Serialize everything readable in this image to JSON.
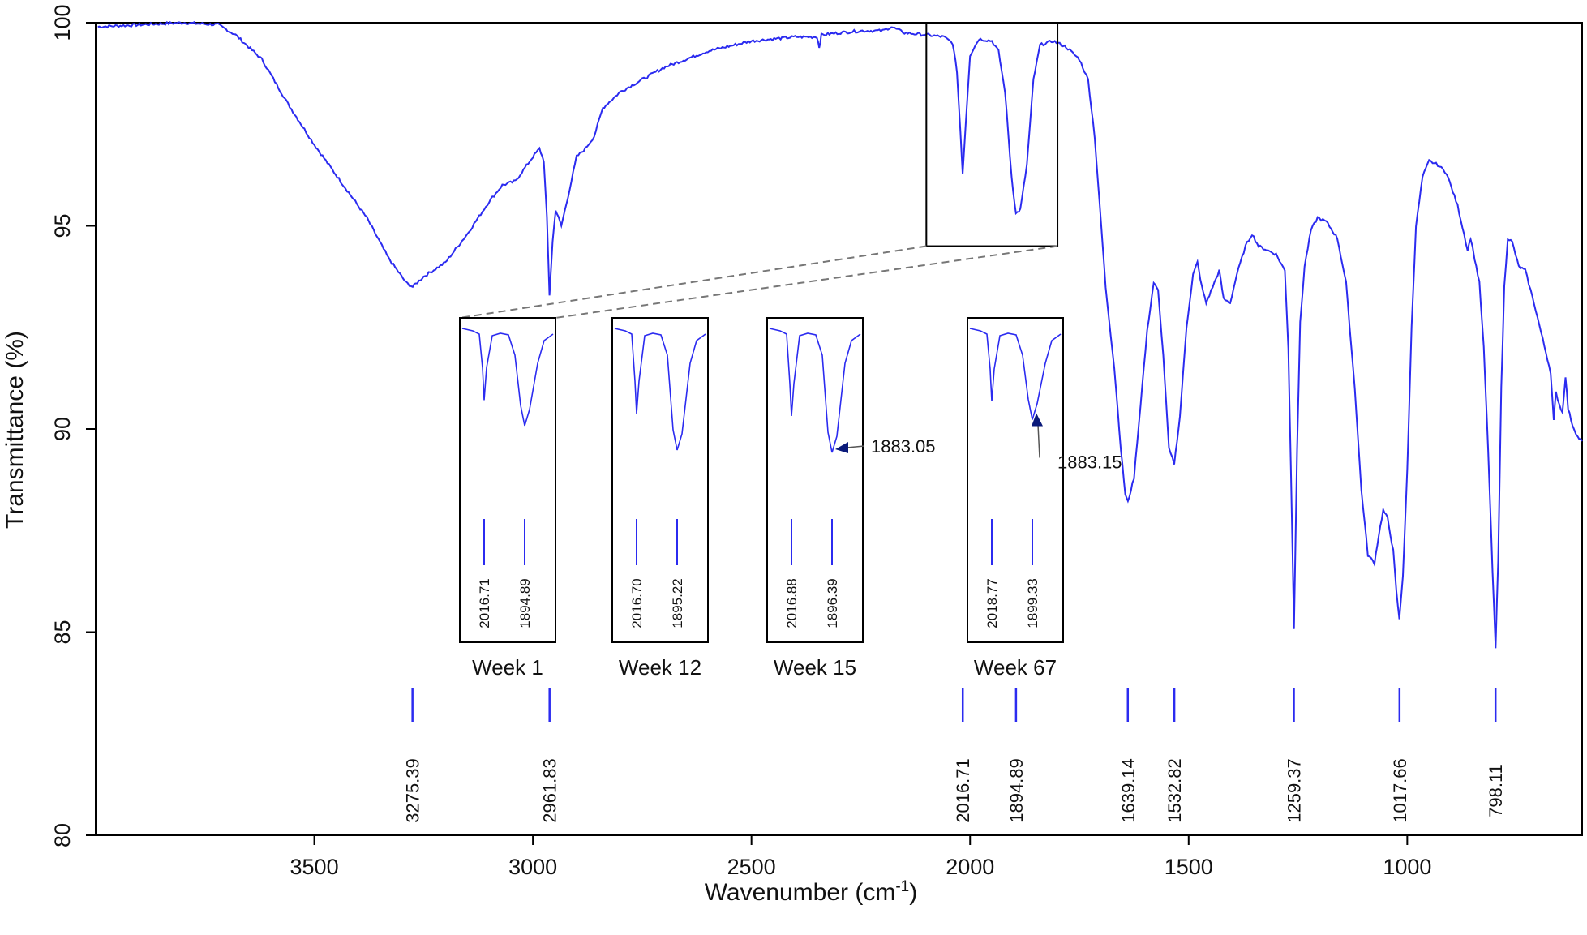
{
  "chart_data": {
    "type": "line",
    "xlabel": "Wavenumber (cm",
    "xlabel_sup": "-1",
    "xlabel_close": ")",
    "ylabel": "Transmittance (%)",
    "xlim": [
      4000,
      600
    ],
    "ylim": [
      80,
      100
    ],
    "x_reversed": true,
    "xticks": [
      "3500",
      "3000",
      "2500",
      "2000",
      "1500",
      "1000"
    ],
    "yticks": [
      "80",
      "85",
      "90",
      "95",
      "100"
    ],
    "line_color": "#2b2bf0",
    "spectrum": [
      [
        3995,
        99.9
      ],
      [
        3900,
        99.95
      ],
      [
        3800,
        100.0
      ],
      [
        3720,
        99.95
      ],
      [
        3680,
        99.7
      ],
      [
        3620,
        99.1
      ],
      [
        3560,
        98.0
      ],
      [
        3500,
        97.0
      ],
      [
        3440,
        96.1
      ],
      [
        3380,
        95.2
      ],
      [
        3330,
        94.2
      ],
      [
        3290,
        93.6
      ],
      [
        3275,
        93.5
      ],
      [
        3250,
        93.75
      ],
      [
        3200,
        94.1
      ],
      [
        3150,
        94.8
      ],
      [
        3100,
        95.6
      ],
      [
        3070,
        96.0
      ],
      [
        3040,
        96.1
      ],
      [
        3000,
        96.7
      ],
      [
        2985,
        96.9
      ],
      [
        2975,
        96.6
      ],
      [
        2968,
        95.2
      ],
      [
        2962,
        93.3
      ],
      [
        2955,
        94.6
      ],
      [
        2948,
        95.4
      ],
      [
        2935,
        95.0
      ],
      [
        2920,
        95.7
      ],
      [
        2900,
        96.7
      ],
      [
        2880,
        96.9
      ],
      [
        2860,
        97.2
      ],
      [
        2840,
        97.9
      ],
      [
        2800,
        98.3
      ],
      [
        2750,
        98.6
      ],
      [
        2700,
        98.9
      ],
      [
        2600,
        99.3
      ],
      [
        2500,
        99.55
      ],
      [
        2400,
        99.65
      ],
      [
        2350,
        99.65
      ],
      [
        2345,
        99.4
      ],
      [
        2340,
        99.7
      ],
      [
        2300,
        99.75
      ],
      [
        2250,
        99.8
      ],
      [
        2200,
        99.8
      ],
      [
        2180,
        99.9
      ],
      [
        2150,
        99.75
      ],
      [
        2100,
        99.7
      ],
      [
        2060,
        99.65
      ],
      [
        2040,
        99.5
      ],
      [
        2030,
        98.8
      ],
      [
        2022,
        97.3
      ],
      [
        2017,
        96.3
      ],
      [
        2010,
        97.5
      ],
      [
        2000,
        99.2
      ],
      [
        1980,
        99.6
      ],
      [
        1950,
        99.55
      ],
      [
        1935,
        99.3
      ],
      [
        1920,
        98.3
      ],
      [
        1905,
        96.2
      ],
      [
        1895,
        95.3
      ],
      [
        1885,
        95.4
      ],
      [
        1870,
        96.5
      ],
      [
        1855,
        98.6
      ],
      [
        1840,
        99.45
      ],
      [
        1810,
        99.55
      ],
      [
        1780,
        99.4
      ],
      [
        1750,
        99.1
      ],
      [
        1730,
        98.6
      ],
      [
        1715,
        97.2
      ],
      [
        1700,
        95.0
      ],
      [
        1690,
        93.5
      ],
      [
        1670,
        91.5
      ],
      [
        1655,
        89.5
      ],
      [
        1645,
        88.4
      ],
      [
        1639,
        88.2
      ],
      [
        1625,
        88.8
      ],
      [
        1610,
        90.6
      ],
      [
        1595,
        92.4
      ],
      [
        1580,
        93.6
      ],
      [
        1570,
        93.4
      ],
      [
        1558,
        91.8
      ],
      [
        1545,
        89.5
      ],
      [
        1533,
        89.15
      ],
      [
        1520,
        90.3
      ],
      [
        1505,
        92.5
      ],
      [
        1490,
        93.8
      ],
      [
        1480,
        94.1
      ],
      [
        1470,
        93.5
      ],
      [
        1460,
        93.1
      ],
      [
        1445,
        93.5
      ],
      [
        1430,
        93.9
      ],
      [
        1420,
        93.2
      ],
      [
        1405,
        93.1
      ],
      [
        1390,
        93.8
      ],
      [
        1370,
        94.5
      ],
      [
        1355,
        94.8
      ],
      [
        1340,
        94.5
      ],
      [
        1300,
        94.3
      ],
      [
        1280,
        93.9
      ],
      [
        1272,
        92.0
      ],
      [
        1266,
        89.0
      ],
      [
        1259,
        85.1
      ],
      [
        1252,
        89.5
      ],
      [
        1245,
        92.6
      ],
      [
        1235,
        94.0
      ],
      [
        1220,
        94.9
      ],
      [
        1205,
        95.2
      ],
      [
        1185,
        95.1
      ],
      [
        1160,
        94.7
      ],
      [
        1140,
        93.6
      ],
      [
        1120,
        91.0
      ],
      [
        1105,
        88.5
      ],
      [
        1090,
        86.9
      ],
      [
        1075,
        86.7
      ],
      [
        1065,
        87.4
      ],
      [
        1055,
        88.0
      ],
      [
        1045,
        87.8
      ],
      [
        1032,
        87.0
      ],
      [
        1025,
        86.0
      ],
      [
        1018,
        85.3
      ],
      [
        1010,
        86.4
      ],
      [
        1000,
        89.0
      ],
      [
        990,
        92.5
      ],
      [
        980,
        95.0
      ],
      [
        965,
        96.2
      ],
      [
        950,
        96.6
      ],
      [
        930,
        96.5
      ],
      [
        910,
        96.3
      ],
      [
        885,
        95.5
      ],
      [
        870,
        94.8
      ],
      [
        862,
        94.4
      ],
      [
        855,
        94.7
      ],
      [
        846,
        94.2
      ],
      [
        835,
        93.6
      ],
      [
        825,
        92.0
      ],
      [
        815,
        89.5
      ],
      [
        805,
        86.5
      ],
      [
        798,
        84.6
      ],
      [
        792,
        86.8
      ],
      [
        785,
        91.0
      ],
      [
        778,
        93.5
      ],
      [
        770,
        94.7
      ],
      [
        760,
        94.6
      ],
      [
        745,
        94.0
      ],
      [
        730,
        93.9
      ],
      [
        710,
        93.1
      ],
      [
        690,
        92.2
      ],
      [
        672,
        91.4
      ],
      [
        665,
        90.2
      ],
      [
        660,
        90.9
      ],
      [
        652,
        90.6
      ],
      [
        645,
        90.4
      ],
      [
        638,
        91.3
      ],
      [
        632,
        90.5
      ],
      [
        622,
        90.1
      ],
      [
        610,
        89.8
      ],
      [
        600,
        89.7
      ]
    ],
    "peak_labels": [
      {
        "x": 3275.39,
        "label": "3275.39"
      },
      {
        "x": 2961.83,
        "label": "2961.83"
      },
      {
        "x": 2016.71,
        "label": "2016.71"
      },
      {
        "x": 1894.89,
        "label": "1894.89"
      },
      {
        "x": 1639.14,
        "label": "1639.14"
      },
      {
        "x": 1532.82,
        "label": "1532.82"
      },
      {
        "x": 1259.37,
        "label": "1259.37"
      },
      {
        "x": 1017.66,
        "label": "1017.66"
      },
      {
        "x": 798.11,
        "label": "798.11"
      }
    ],
    "zoom_region_x": [
      2100,
      1800
    ],
    "zoom_region_y": [
      94.5,
      100
    ],
    "insets": [
      {
        "title": "Week 1",
        "peaks": [
          "2016.71",
          "1894.89"
        ],
        "depth1": 0.57,
        "depth2": 0.78,
        "callout": ""
      },
      {
        "title": "Week 12",
        "peaks": [
          "2016.70",
          "1895.22"
        ],
        "depth1": 0.68,
        "depth2": 0.98,
        "callout": ""
      },
      {
        "title": "Week 15",
        "peaks": [
          "2016.88",
          "1896.39"
        ],
        "depth1": 0.7,
        "depth2": 1.0,
        "callout": "1883.05"
      },
      {
        "title": "Week 67",
        "peaks": [
          "2018.77",
          "1899.33"
        ],
        "depth1": 0.58,
        "depth2": 0.73,
        "callout": "1883.15"
      }
    ]
  }
}
